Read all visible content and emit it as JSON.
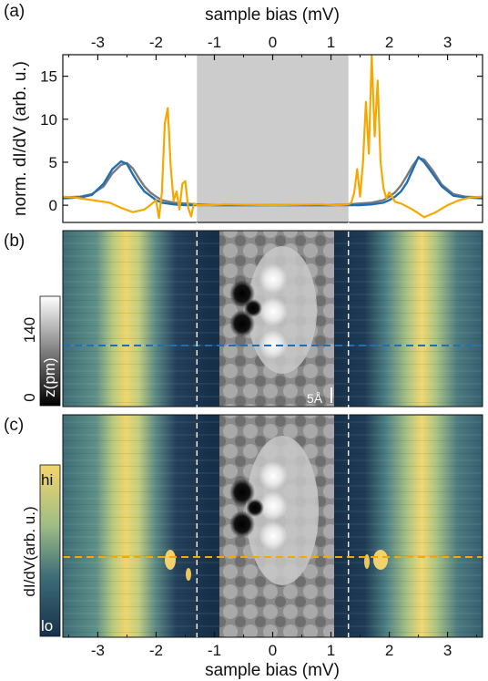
{
  "figure": {
    "panel_labels": [
      "(a)",
      "(b)",
      "(c)"
    ],
    "top_xlabel": "sample bias (mV)",
    "bottom_xlabel": "sample bias (mV)",
    "scale_bar": "5Å",
    "colorbar_b": {
      "label": "z(pm)",
      "min_label": "0",
      "max_label": "140"
    },
    "colorbar_c": {
      "label": "dI/dV(arb. u.)",
      "hi_label": "hi",
      "lo_label": "lo"
    }
  },
  "colors": {
    "orange": "#f5a800",
    "blue": "#1f6fb2",
    "gray_curve": "#7a7a7a",
    "gap_shade": "#cccccc",
    "map_dark": "#17304a",
    "map_mid": "#5b8a8a",
    "map_bright": "#f2d36b"
  },
  "chart_data": [
    {
      "type": "line",
      "panel": "(a)",
      "xlabel": "sample bias (mV)",
      "ylabel": "norm. dI/dV (arb. u.)",
      "xlim": [
        -3.6,
        3.6
      ],
      "ylim": [
        -2,
        17.5
      ],
      "xticks": [
        -3,
        -2,
        -1,
        0,
        1,
        2,
        3
      ],
      "yticks": [
        0,
        5,
        10,
        15
      ],
      "shaded_region_x": [
        -1.3,
        1.3
      ],
      "series": [
        {
          "color": "#7a7a7a",
          "x": [
            -3.6,
            -3.3,
            -3.1,
            -2.9,
            -2.75,
            -2.6,
            -2.5,
            -2.4,
            -2.3,
            -2.2,
            -2.1,
            -2.0,
            -1.9,
            -1.7,
            -1.5,
            -1.3,
            -1.0,
            0,
            1.0,
            1.3,
            1.5,
            1.7,
            1.9,
            2.0,
            2.1,
            2.2,
            2.3,
            2.4,
            2.5,
            2.6,
            2.75,
            2.9,
            3.1,
            3.3,
            3.6
          ],
          "y": [
            0.9,
            1.0,
            1.3,
            2.2,
            3.7,
            4.7,
            4.9,
            4.3,
            3.2,
            2.2,
            1.5,
            1.0,
            0.6,
            0.3,
            0.2,
            0.1,
            0.0,
            0.0,
            0.0,
            0.1,
            0.2,
            0.3,
            0.6,
            1.0,
            1.5,
            2.3,
            3.4,
            4.6,
            5.5,
            5.3,
            4.0,
            2.4,
            1.3,
            1.0,
            0.9
          ]
        },
        {
          "color": "#1f6fb2",
          "x": [
            -3.6,
            -3.3,
            -3.1,
            -2.9,
            -2.75,
            -2.6,
            -2.5,
            -2.4,
            -2.3,
            -2.2,
            -2.1,
            -2.0,
            -1.9,
            -1.7,
            -1.5,
            -1.3,
            -1.0,
            0,
            1.0,
            1.3,
            1.5,
            1.7,
            1.9,
            2.0,
            2.1,
            2.2,
            2.3,
            2.4,
            2.5,
            2.6,
            2.75,
            2.9,
            3.1,
            3.3,
            3.6
          ],
          "y": [
            0.8,
            0.9,
            1.2,
            2.5,
            4.2,
            5.1,
            4.8,
            3.6,
            2.5,
            1.6,
            1.1,
            0.6,
            0.3,
            0.1,
            0.0,
            0.0,
            0.0,
            0.0,
            0.0,
            0.0,
            0.0,
            0.1,
            0.3,
            0.6,
            1.0,
            1.6,
            2.6,
            4.1,
            5.6,
            5.0,
            3.6,
            2.2,
            1.1,
            0.9,
            0.8
          ]
        },
        {
          "color": "#f5a800",
          "x": [
            -3.6,
            -3.4,
            -3.2,
            -3.0,
            -2.8,
            -2.6,
            -2.4,
            -2.2,
            -2.1,
            -2.0,
            -1.95,
            -1.9,
            -1.85,
            -1.8,
            -1.75,
            -1.7,
            -1.65,
            -1.6,
            -1.55,
            -1.5,
            -1.45,
            -1.4,
            -1.35,
            -1.3,
            -1.1,
            -0.8,
            0,
            0.8,
            1.1,
            1.3,
            1.35,
            1.4,
            1.45,
            1.5,
            1.55,
            1.6,
            1.65,
            1.7,
            1.75,
            1.8,
            1.85,
            1.9,
            1.95,
            2.0,
            2.1,
            2.2,
            2.4,
            2.6,
            2.8,
            3.0,
            3.2,
            3.4,
            3.6
          ],
          "y": [
            1.0,
            0.9,
            0.7,
            0.5,
            0.3,
            -0.3,
            -0.8,
            -0.5,
            0.0,
            0.6,
            -1.5,
            1.5,
            9.5,
            11.3,
            4.5,
            0.5,
            1.6,
            -0.5,
            2.5,
            2.8,
            -0.3,
            -1.3,
            0.2,
            0.0,
            0.0,
            0.1,
            0.0,
            0.1,
            0.0,
            0.1,
            0.3,
            1.5,
            4.2,
            1.0,
            5.0,
            12.0,
            6.0,
            17.5,
            8.0,
            14.5,
            5.0,
            2.0,
            0.8,
            1.5,
            0.4,
            0.2,
            -0.5,
            -1.4,
            -0.8,
            0.0,
            0.6,
            0.9,
            1.0
          ]
        }
      ]
    },
    {
      "type": "heatmap",
      "panel": "(b)",
      "description_colorbar": "z(pm)",
      "xlim": [
        -3.6,
        3.6
      ],
      "marked_bias_lines_mV": [
        -1.3,
        1.3
      ],
      "horizontal_cut_color": "#1f6fb2"
    },
    {
      "type": "heatmap",
      "panel": "(c)",
      "xlabel": "sample bias (mV)",
      "xlim": [
        -3.6,
        3.6
      ],
      "xticks": [
        -3,
        -2,
        -1,
        0,
        1,
        2,
        3
      ],
      "marked_bias_lines_mV": [
        -1.3,
        1.3
      ],
      "horizontal_cut_color": "#f5a800"
    }
  ]
}
